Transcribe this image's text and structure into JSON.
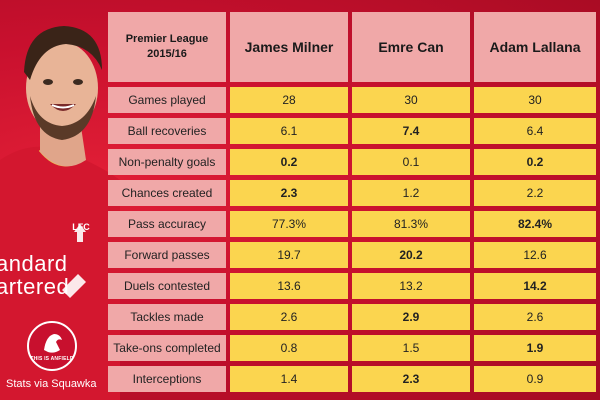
{
  "table": {
    "corner": [
      "Premier League",
      "2015/16"
    ],
    "players": [
      "James Milner",
      "Emre Can",
      "Adam Lallana"
    ],
    "rows": [
      {
        "label": "Games played",
        "values": [
          "28",
          "30",
          "30"
        ],
        "bold": [
          false,
          false,
          false
        ]
      },
      {
        "label": "Ball recoveries",
        "values": [
          "6.1",
          "7.4",
          "6.4"
        ],
        "bold": [
          false,
          true,
          false
        ]
      },
      {
        "label": "Non-penalty goals",
        "values": [
          "0.2",
          "0.1",
          "0.2"
        ],
        "bold": [
          true,
          false,
          true
        ]
      },
      {
        "label": "Chances created",
        "values": [
          "2.3",
          "1.2",
          "2.2"
        ],
        "bold": [
          true,
          false,
          false
        ]
      },
      {
        "label": "Pass accuracy",
        "values": [
          "77.3%",
          "81.3%",
          "82.4%"
        ],
        "bold": [
          false,
          false,
          true
        ]
      },
      {
        "label": "Forward passes",
        "values": [
          "19.7",
          "20.2",
          "12.6"
        ],
        "bold": [
          false,
          true,
          false
        ]
      },
      {
        "label": "Duels contested",
        "values": [
          "13.6",
          "13.2",
          "14.2"
        ],
        "bold": [
          false,
          false,
          true
        ]
      },
      {
        "label": "Tackles made",
        "values": [
          "2.6",
          "2.9",
          "2.6"
        ],
        "bold": [
          false,
          true,
          false
        ]
      },
      {
        "label": "Take-ons completed",
        "values": [
          "0.8",
          "1.5",
          "1.9"
        ],
        "bold": [
          false,
          false,
          true
        ]
      },
      {
        "label": "Interceptions",
        "values": [
          "1.4",
          "2.3",
          "0.9"
        ],
        "bold": [
          false,
          true,
          false
        ]
      }
    ]
  },
  "shirt": {
    "sponsor_lines": [
      "andard",
      "artered"
    ],
    "crest_text": "LFC"
  },
  "logo": {
    "text": "THIS IS ANFIELD",
    "icon": "liverbird-icon"
  },
  "credit": "Stats via Squawka",
  "colors": {
    "background": "#c8102e",
    "header_cell": "#f0a8a8",
    "value_cell": "#fbd54f"
  }
}
